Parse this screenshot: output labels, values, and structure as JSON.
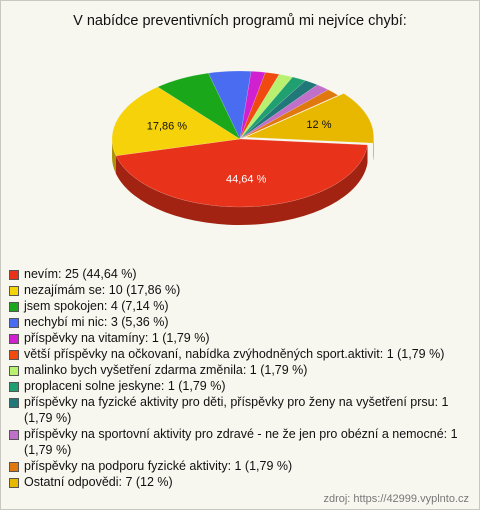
{
  "chart_data": {
    "type": "pie",
    "title": "V nabídce preventivních programů mi nejvíce chybí:",
    "labels": [
      "nevím: 25 (44,64 %)",
      "nezajímám se: 10 (17,86 %)",
      "jsem spokojen: 4 (7,14 %)",
      "nechybí mi nic: 3 (5,36 %)",
      "příspěvky na vitamíny: 1 (1,79 %)",
      "větší příspěvky na očkovaní, nabídka zvýhodněných sport.aktivit: 1 (1,79 %)",
      "malinko bych vyšetření zdarma změnila: 1 (1,79 %)",
      "proplaceni solne jeskyne: 1 (1,79 %)",
      "příspěvky na fyzické aktivity pro děti, příspěvky pro ženy na vyšetření prsu: 1 (1,79 %)",
      "příspěvky na sportovní aktivity pro zdravé - ne že jen pro obézní a nemocné: 1 (1,79 %)",
      "příspěvky na podporu fyzické aktivity: 1 (1,79 %)",
      "Ostatní odpovědi: 7 (12 %)"
    ],
    "values": [
      25,
      10,
      4,
      3,
      1,
      1,
      1,
      1,
      1,
      1,
      1,
      7
    ],
    "value_labels": [
      "44,64 %",
      "17,86 %",
      null,
      null,
      null,
      null,
      null,
      null,
      null,
      null,
      null,
      "12 %"
    ],
    "colors": [
      "#e8321a",
      "#f5d20a",
      "#1aa81a",
      "#4a6cf0",
      "#d020d0",
      "#f04a10",
      "#b8f070",
      "#20a070",
      "#207878",
      "#c070c8",
      "#e07810",
      "#e8b800"
    ],
    "exploded": [
      false,
      false,
      false,
      false,
      false,
      false,
      false,
      false,
      false,
      false,
      false,
      true
    ],
    "source": "zdroj: https://42999.vyplnto.cz"
  }
}
